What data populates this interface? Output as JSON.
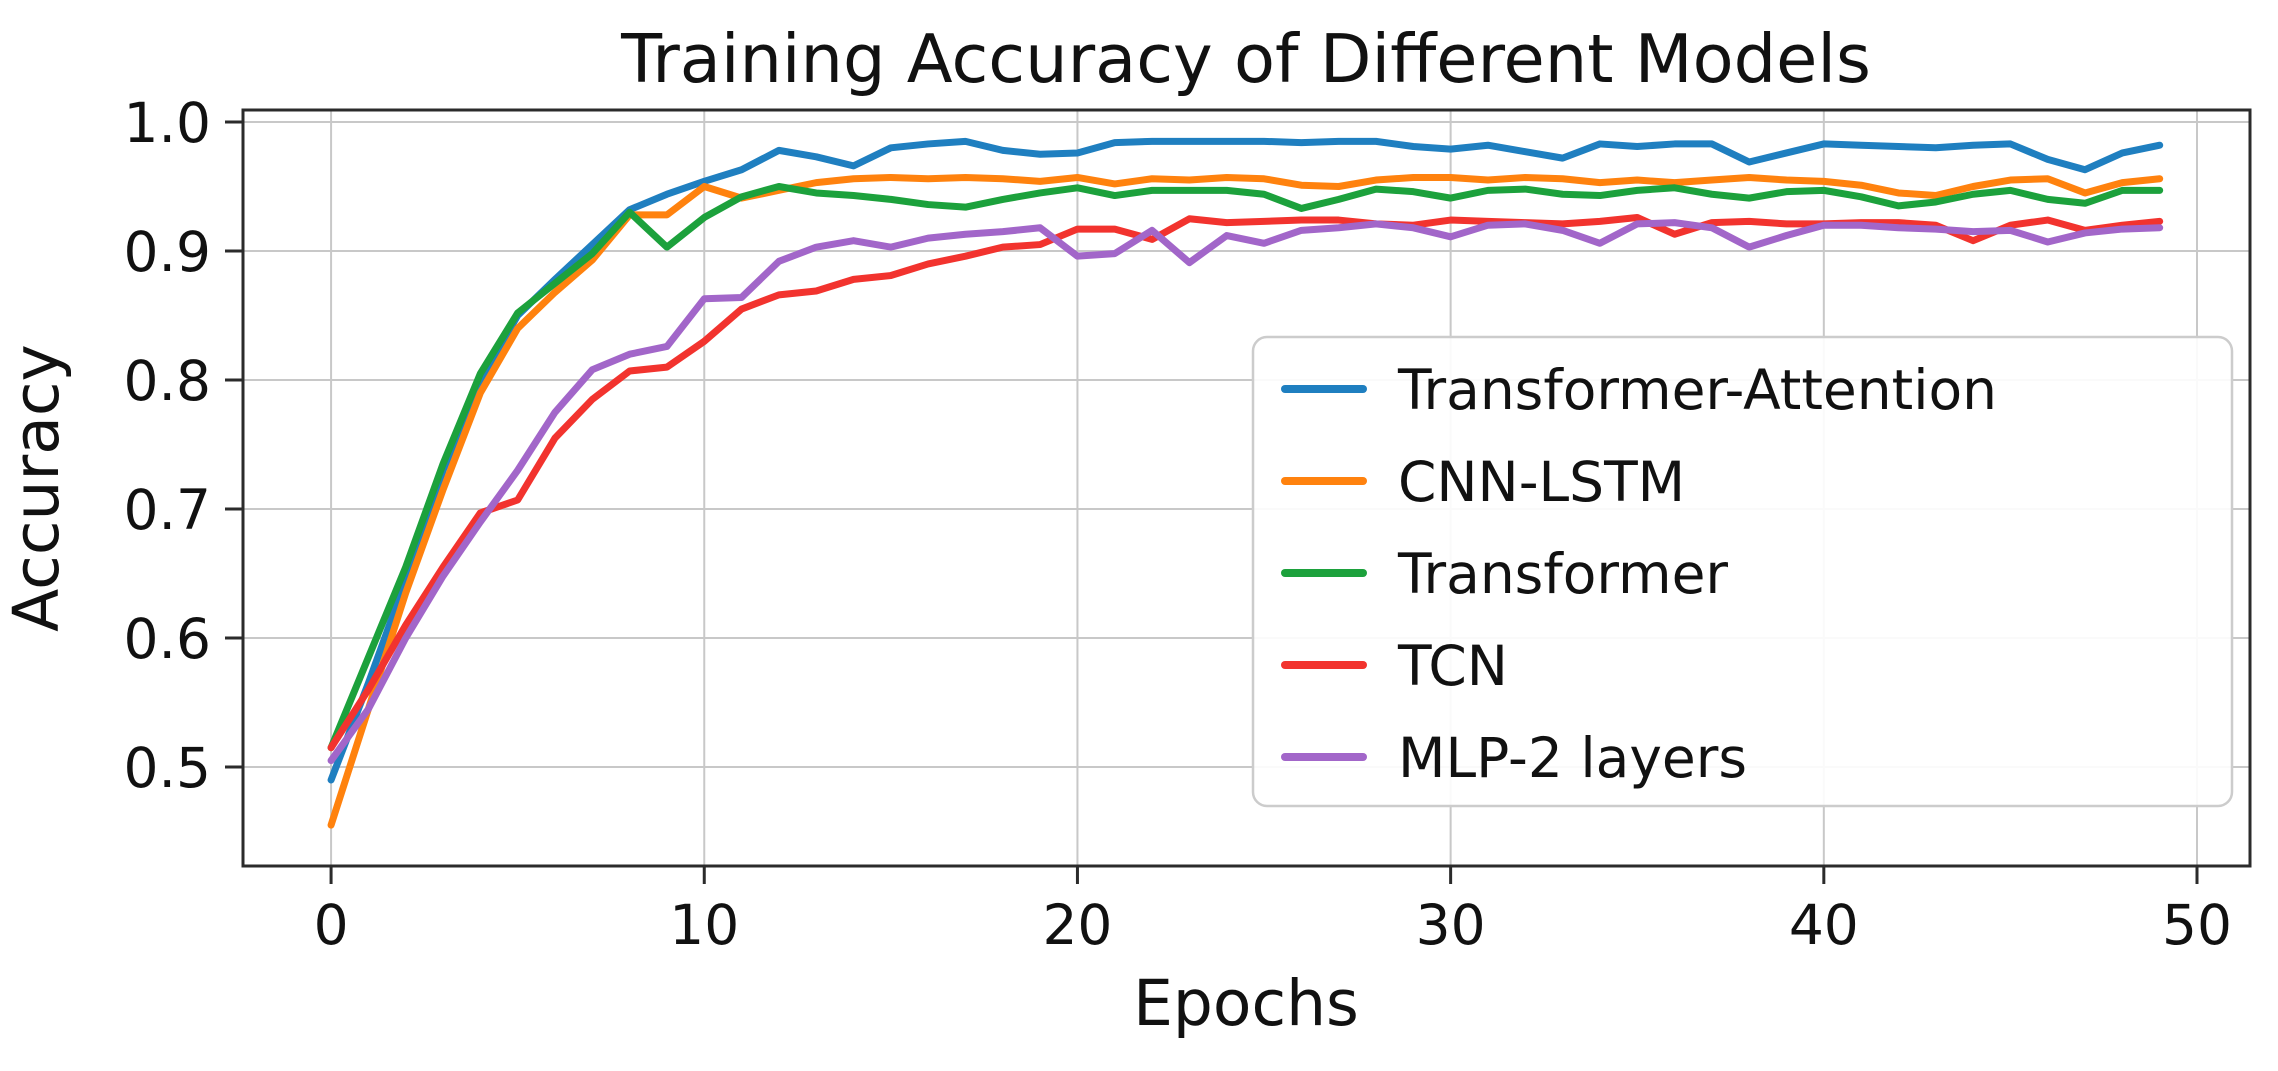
{
  "title": "Training Accuracy of Different Models",
  "axes": {
    "xlabel": "Epochs",
    "ylabel": "Accuracy"
  },
  "colors": {
    "grid": "#c8c8c8",
    "spine": "#2b2b2b",
    "tick_text": "#111111",
    "legend_edge": "#cccccc",
    "legend_fill": "#ffffff"
  },
  "chart_data": {
    "type": "line",
    "title": "Training Accuracy of Different Models",
    "xlabel": "Epochs",
    "ylabel": "Accuracy",
    "grid": true,
    "legend_location": "lower right inside",
    "xlim": [
      -2.36,
      51.42
    ],
    "ylim": [
      0.4233,
      1.0093
    ],
    "xticks": [
      0,
      10,
      20,
      30,
      40,
      50
    ],
    "yticks": [
      0.5,
      0.6,
      0.7,
      0.8,
      0.9,
      1.0
    ],
    "x_start": 0,
    "x_step": 1,
    "n_points": 50,
    "series": [
      {
        "name": "Transformer-Attention",
        "color": "#1f7fc0",
        "values": [
          0.49,
          0.565,
          0.645,
          0.73,
          0.8,
          0.85,
          0.878,
          0.905,
          0.932,
          0.944,
          0.954,
          0.963,
          0.978,
          0.973,
          0.966,
          0.98,
          0.983,
          0.985,
          0.978,
          0.975,
          0.976,
          0.984,
          0.985,
          0.985,
          0.985,
          0.985,
          0.984,
          0.985,
          0.985,
          0.981,
          0.979,
          0.982,
          0.977,
          0.972,
          0.983,
          0.981,
          0.983,
          0.983,
          0.969,
          0.976,
          0.983,
          0.982,
          0.981,
          0.98,
          0.982,
          0.983,
          0.971,
          0.963,
          0.976,
          0.982
        ]
      },
      {
        "name": "CNN-LSTM",
        "color": "#ff820e",
        "values": [
          0.455,
          0.545,
          0.635,
          0.715,
          0.79,
          0.84,
          0.868,
          0.893,
          0.928,
          0.928,
          0.95,
          0.941,
          0.947,
          0.953,
          0.956,
          0.957,
          0.956,
          0.957,
          0.956,
          0.954,
          0.957,
          0.952,
          0.956,
          0.955,
          0.957,
          0.956,
          0.951,
          0.95,
          0.955,
          0.957,
          0.957,
          0.955,
          0.957,
          0.956,
          0.953,
          0.955,
          0.953,
          0.955,
          0.957,
          0.955,
          0.954,
          0.951,
          0.945,
          0.943,
          0.95,
          0.955,
          0.956,
          0.945,
          0.953,
          0.956
        ]
      },
      {
        "name": "Transformer",
        "color": "#1ca13c",
        "values": [
          0.515,
          0.585,
          0.655,
          0.735,
          0.805,
          0.852,
          0.875,
          0.898,
          0.93,
          0.903,
          0.926,
          0.942,
          0.95,
          0.945,
          0.943,
          0.94,
          0.936,
          0.934,
          0.94,
          0.945,
          0.949,
          0.943,
          0.947,
          0.947,
          0.947,
          0.944,
          0.933,
          0.94,
          0.948,
          0.946,
          0.941,
          0.947,
          0.948,
          0.944,
          0.943,
          0.947,
          0.949,
          0.944,
          0.941,
          0.946,
          0.947,
          0.942,
          0.935,
          0.938,
          0.944,
          0.947,
          0.94,
          0.937,
          0.947,
          0.947
        ]
      },
      {
        "name": "TCN",
        "color": "#f2332e",
        "values": [
          0.515,
          0.56,
          0.61,
          0.655,
          0.697,
          0.707,
          0.755,
          0.785,
          0.807,
          0.81,
          0.83,
          0.855,
          0.866,
          0.869,
          0.878,
          0.881,
          0.89,
          0.896,
          0.903,
          0.905,
          0.917,
          0.917,
          0.909,
          0.925,
          0.922,
          0.923,
          0.924,
          0.924,
          0.921,
          0.92,
          0.924,
          0.923,
          0.922,
          0.921,
          0.923,
          0.926,
          0.913,
          0.922,
          0.923,
          0.921,
          0.921,
          0.922,
          0.922,
          0.92,
          0.908,
          0.92,
          0.924,
          0.916,
          0.92,
          0.923
        ]
      },
      {
        "name": "MLP-2 layers",
        "color": "#a266c9",
        "values": [
          0.505,
          0.545,
          0.6,
          0.648,
          0.69,
          0.73,
          0.775,
          0.808,
          0.82,
          0.826,
          0.863,
          0.864,
          0.892,
          0.903,
          0.908,
          0.903,
          0.91,
          0.913,
          0.915,
          0.918,
          0.896,
          0.898,
          0.916,
          0.891,
          0.912,
          0.906,
          0.916,
          0.918,
          0.921,
          0.918,
          0.911,
          0.92,
          0.921,
          0.916,
          0.906,
          0.921,
          0.922,
          0.918,
          0.903,
          0.912,
          0.92,
          0.92,
          0.918,
          0.917,
          0.915,
          0.916,
          0.907,
          0.914,
          0.917,
          0.918
        ]
      }
    ]
  }
}
